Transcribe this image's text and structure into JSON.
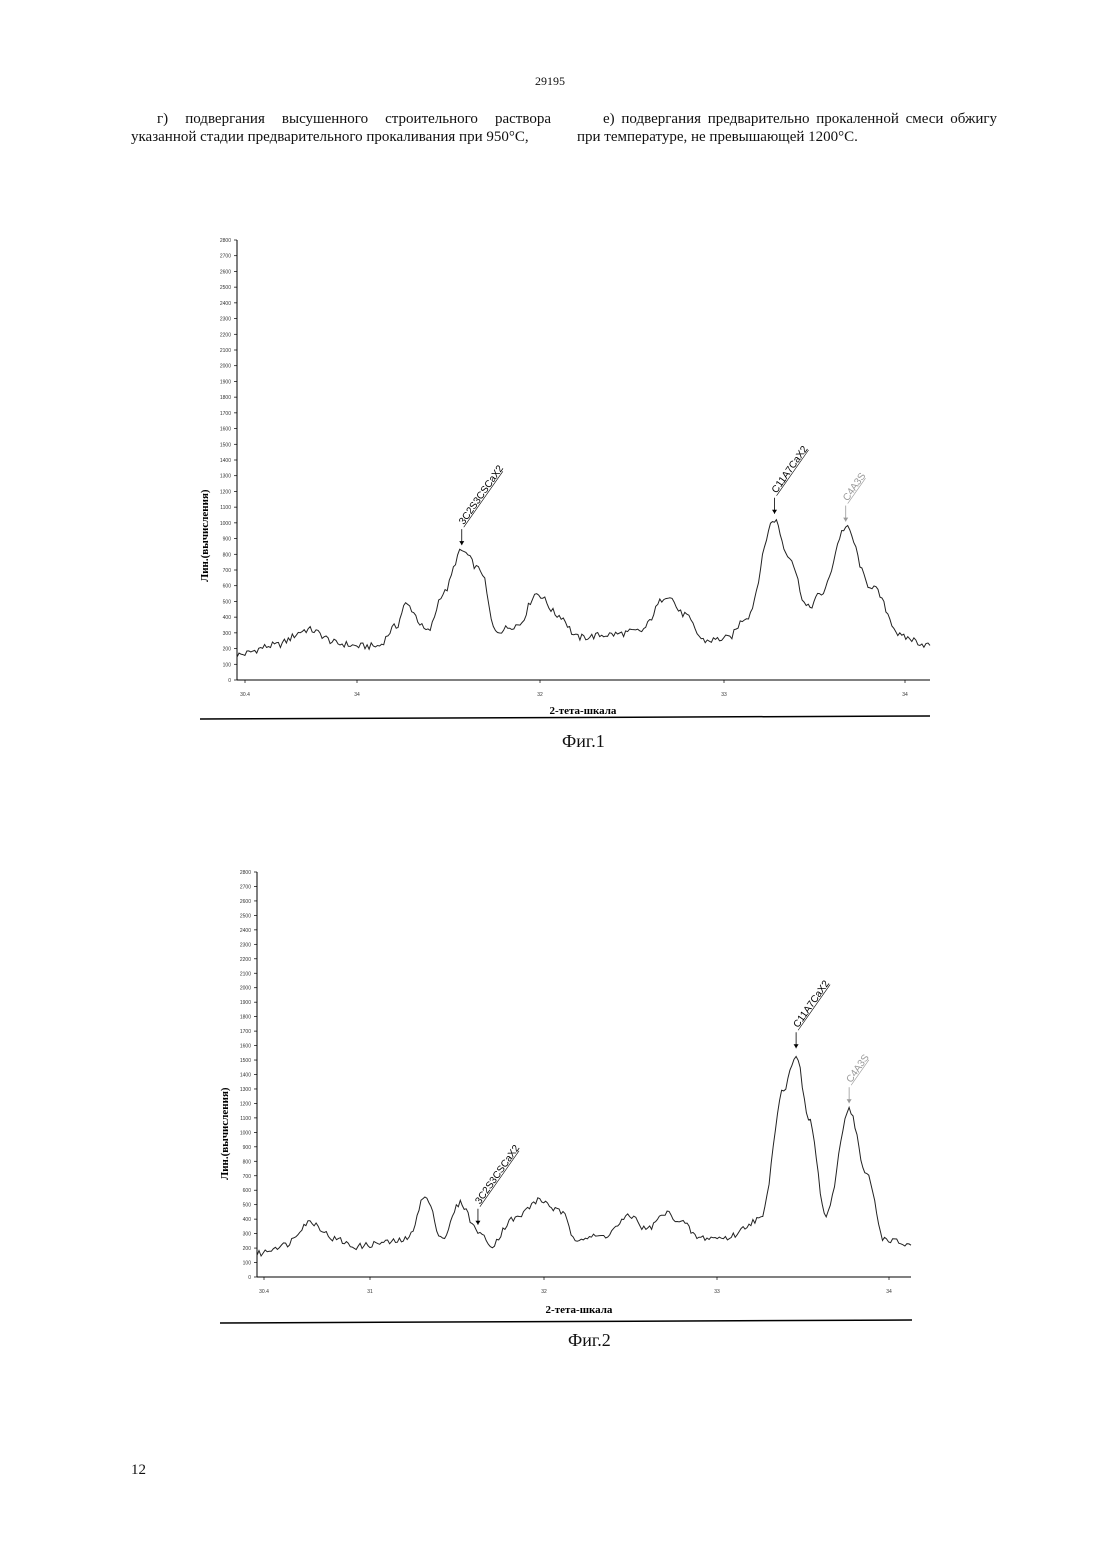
{
  "page": {
    "header_number": "29195",
    "left_column": "г) подвергания высушенного строительного раствора указанной стадии предварительного прокаливания при 950°С,",
    "right_column": "е) подвергания предварительно прокаленной смеси обжигу при температуре, не превышающей 1200°С.",
    "page_number": "12"
  },
  "figures": [
    {
      "caption": "Фиг.1",
      "ylabel": "Лин.(вычисления)",
      "xlabel": "2-тета-шкала",
      "y_ticks": [
        "2800",
        "2700",
        "2600",
        "2500",
        "2400",
        "2300",
        "2200",
        "2100",
        "2000",
        "1900",
        "1800",
        "1700",
        "1600",
        "1500",
        "1400",
        "1300",
        "1200",
        "1100",
        "1000",
        "900",
        "800",
        "700",
        "600",
        "500",
        "400",
        "300",
        "200",
        "100",
        "0"
      ],
      "x_ticks": [
        "30.4",
        "34",
        "32",
        "33",
        "34"
      ],
      "annotations": [
        {
          "label": "3C2S3CSCaX2",
          "color": "#000000"
        },
        {
          "label": "C11A7CaX2",
          "color": "#000000"
        },
        {
          "label": "C4A3S",
          "color": "#999999"
        }
      ]
    },
    {
      "caption": "Фиг.2",
      "ylabel": "Лин.(вычисления)",
      "xlabel": "2-тета-шкала",
      "y_ticks": [
        "2800",
        "2700",
        "2600",
        "2500",
        "2400",
        "2300",
        "2200",
        "2100",
        "2000",
        "1900",
        "1800",
        "1700",
        "1600",
        "1500",
        "1400",
        "1300",
        "1200",
        "1100",
        "1000",
        "900",
        "800",
        "700",
        "600",
        "500",
        "400",
        "300",
        "200",
        "100",
        "0"
      ],
      "x_ticks": [
        "30.4",
        "31",
        "32",
        "33",
        "34"
      ],
      "annotations": [
        {
          "label": "3C2S3CSCaX2",
          "color": "#000000"
        },
        {
          "label": "C11A7CaX2",
          "color": "#000000"
        },
        {
          "label": "C4A3S",
          "color": "#999999"
        }
      ]
    }
  ],
  "chart_data": [
    {
      "type": "line",
      "title": "Фиг.1",
      "xlabel": "2-тета-шкала",
      "ylabel": "Лин.(вычисления)",
      "ylim": [
        0,
        2800
      ],
      "x": [
        30.4,
        30.6,
        30.78,
        30.95,
        31.05,
        31.15,
        31.25,
        31.3,
        31.42,
        31.5,
        31.6,
        31.7,
        31.78,
        31.9,
        32.0,
        32.12,
        32.22,
        32.4,
        32.55,
        32.7,
        32.78,
        32.9,
        33.02,
        33.12,
        33.27,
        33.34,
        33.45,
        33.52,
        33.65,
        33.78,
        33.96,
        34.1
      ],
      "series": [
        {
          "values": [
            160,
            220,
            320,
            230,
            215,
            215,
            340,
            480,
            310,
            550,
            820,
            700,
            310,
            350,
            550,
            410,
            270,
            290,
            310,
            540,
            420,
            250,
            265,
            400,
            1020,
            800,
            460,
            550,
            970,
            600,
            270,
            220
          ]
        }
      ],
      "annotations": [
        {
          "label": "3C2S3CSCaX2",
          "x": 31.6,
          "y": 820
        },
        {
          "label": "C11A7CaX2",
          "x": 33.27,
          "y": 1020
        },
        {
          "label": "C4A3S",
          "x": 33.65,
          "y": 970
        }
      ]
    },
    {
      "type": "line",
      "title": "Фиг.2",
      "xlabel": "2-тета-шкала",
      "ylabel": "Лин.(вычисления)",
      "ylim": [
        0,
        2800
      ],
      "x": [
        30.4,
        30.55,
        30.7,
        30.85,
        30.95,
        31.15,
        31.25,
        31.35,
        31.45,
        31.55,
        31.65,
        31.72,
        31.85,
        32.0,
        32.12,
        32.2,
        32.35,
        32.52,
        32.6,
        32.72,
        32.8,
        32.9,
        33.05,
        33.25,
        33.38,
        33.45,
        33.52,
        33.62,
        33.75,
        33.85,
        33.95,
        34.1
      ],
      "series": [
        {
          "values": [
            160,
            220,
            380,
            260,
            210,
            240,
            260,
            550,
            270,
            510,
            320,
            220,
            400,
            530,
            450,
            270,
            280,
            420,
            330,
            440,
            380,
            270,
            270,
            400,
            1300,
            1540,
            1100,
            420,
            1160,
            700,
            260,
            220
          ]
        }
      ],
      "annotations": [
        {
          "label": "3C2S3CSCaX2",
          "x": 31.65,
          "y": 320
        },
        {
          "label": "C11A7CaX2",
          "x": 33.45,
          "y": 1540
        },
        {
          "label": "C4A3S",
          "x": 33.75,
          "y": 1160
        }
      ]
    }
  ]
}
